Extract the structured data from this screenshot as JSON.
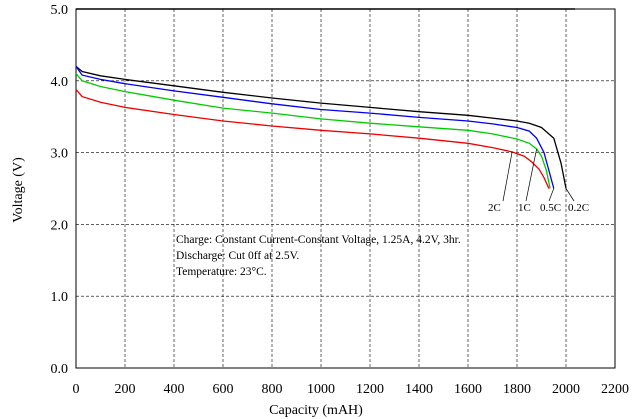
{
  "chart_data": {
    "type": "line",
    "xlabel": "Capacity (mAH)",
    "ylabel": "Voltage (V)",
    "xlim": [
      0,
      2200
    ],
    "ylim": [
      0,
      5
    ],
    "xticks": [
      "0",
      "200",
      "400",
      "600",
      "800",
      "1000",
      "1200",
      "1400",
      "1600",
      "1800",
      "2000",
      "2200"
    ],
    "yticks": [
      "0.0",
      "1.0",
      "2.0",
      "3.0",
      "4.0",
      "5.0"
    ],
    "grid": true,
    "grid_style": "dashed",
    "notes": [
      "Charge: Constant Current-Constant Voltage, 1.25A, 4.2V, 3hr.",
      "Discharge: Cut 0ff at 2.5V.",
      "Temperature: 23°C."
    ],
    "series": [
      {
        "name": "0.2C",
        "color": "#000000",
        "x": [
          0,
          25,
          100,
          200,
          400,
          600,
          800,
          1000,
          1200,
          1400,
          1600,
          1700,
          1800,
          1850,
          1900,
          1950,
          1980,
          2000
        ],
        "y": [
          4.2,
          4.13,
          4.07,
          4.02,
          3.93,
          3.84,
          3.76,
          3.69,
          3.63,
          3.57,
          3.52,
          3.48,
          3.44,
          3.41,
          3.35,
          3.2,
          2.85,
          2.5
        ]
      },
      {
        "name": "0.5C",
        "color": "#0000ee",
        "x": [
          0,
          25,
          100,
          200,
          400,
          600,
          800,
          1000,
          1200,
          1400,
          1600,
          1700,
          1800,
          1850,
          1880,
          1910,
          1930,
          1950
        ],
        "y": [
          4.2,
          4.08,
          4.02,
          3.96,
          3.86,
          3.77,
          3.68,
          3.6,
          3.55,
          3.49,
          3.44,
          3.4,
          3.35,
          3.3,
          3.2,
          3.0,
          2.75,
          2.5
        ]
      },
      {
        "name": "1C",
        "color": "#00cc00",
        "x": [
          0,
          25,
          100,
          200,
          400,
          600,
          800,
          1000,
          1200,
          1400,
          1600,
          1700,
          1800,
          1850,
          1880,
          1900,
          1920,
          1935
        ],
        "y": [
          4.1,
          4.0,
          3.92,
          3.85,
          3.73,
          3.62,
          3.55,
          3.47,
          3.41,
          3.36,
          3.31,
          3.26,
          3.19,
          3.13,
          3.05,
          2.95,
          2.75,
          2.5
        ]
      },
      {
        "name": "2C",
        "color": "#ee0000",
        "x": [
          0,
          25,
          100,
          200,
          400,
          600,
          800,
          1000,
          1200,
          1400,
          1600,
          1700,
          1780,
          1830,
          1860,
          1890,
          1910,
          1930
        ],
        "y": [
          3.88,
          3.78,
          3.7,
          3.63,
          3.53,
          3.44,
          3.37,
          3.31,
          3.26,
          3.2,
          3.13,
          3.07,
          3.01,
          2.95,
          2.87,
          2.77,
          2.65,
          2.5
        ]
      }
    ]
  }
}
